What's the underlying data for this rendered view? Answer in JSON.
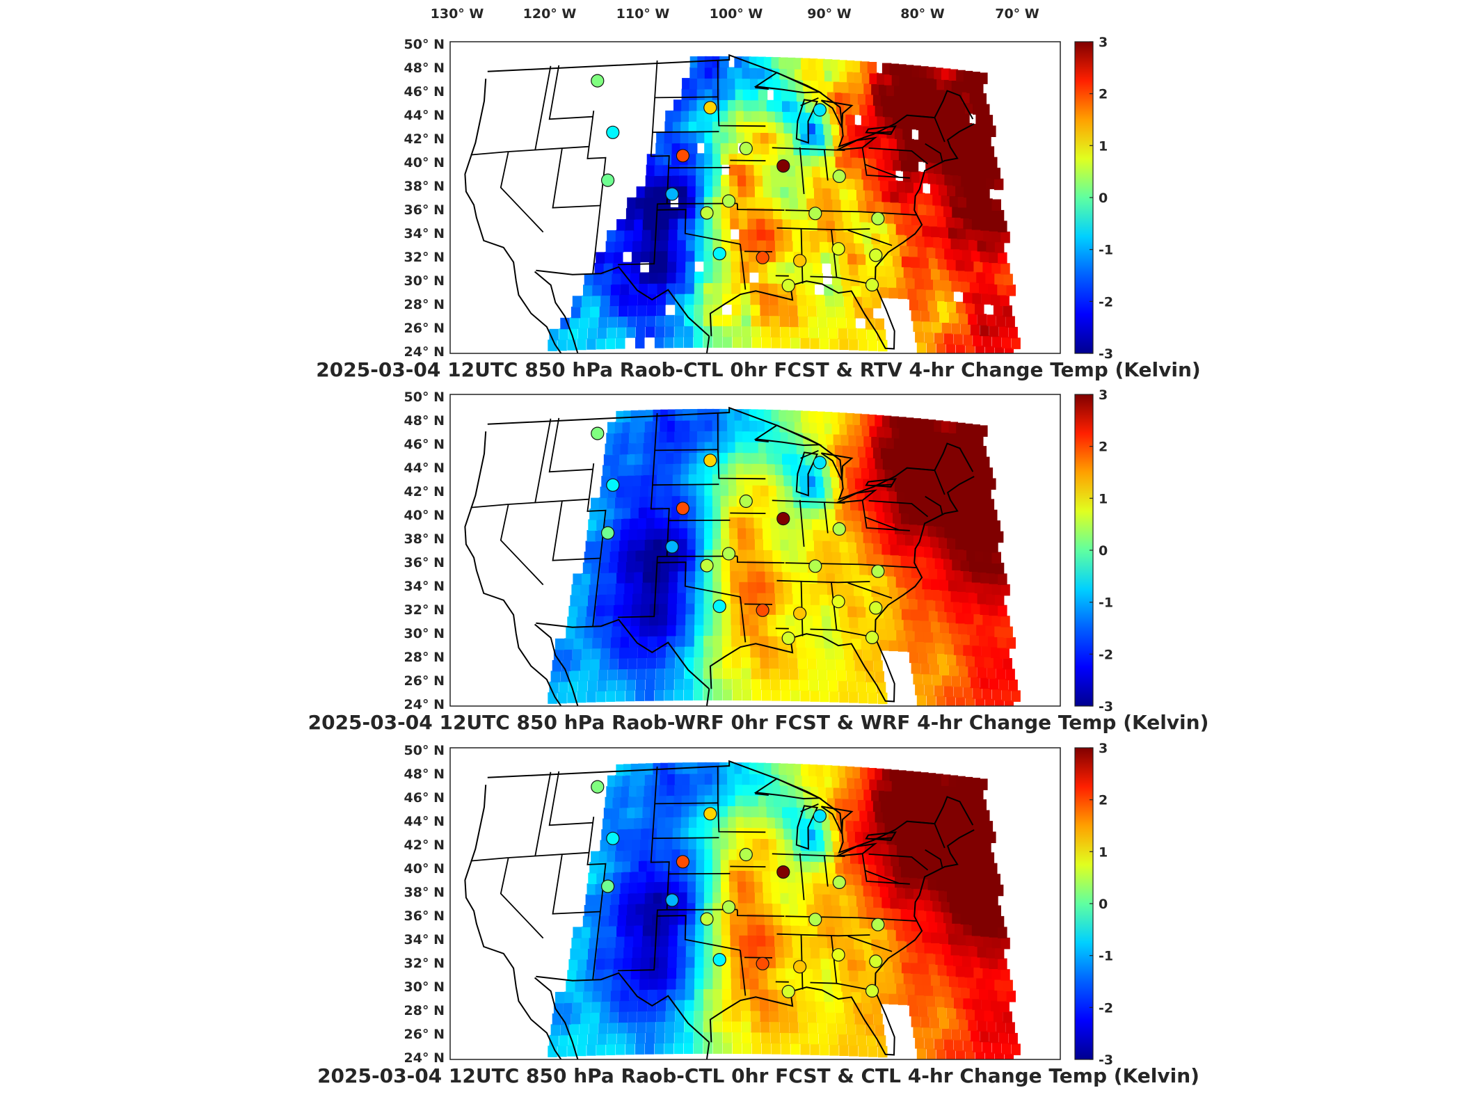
{
  "top_axis_labels": [
    "130° W",
    "120° W",
    "110° W",
    "100° W",
    "90° W",
    "80° W",
    "70° W"
  ],
  "lat_labels": [
    "50° N",
    "48° N",
    "46° N",
    "44° N",
    "42° N",
    "40° N",
    "38° N",
    "36° N",
    "34° N",
    "32° N",
    "30° N",
    "28° N",
    "26° N",
    "24° N"
  ],
  "colorbar": {
    "tick_labels": [
      "3",
      "2",
      "1",
      "0",
      "-1",
      "-2",
      "-3"
    ],
    "range": [
      -3,
      3
    ],
    "colormap": [
      "#00008f",
      "#0000ff",
      "#0080ff",
      "#00ffff",
      "#80ff80",
      "#ffff00",
      "#ff8000",
      "#ff0000",
      "#800000"
    ]
  },
  "panels": [
    {
      "title": "2025-03-04 12UTC 850 hPa Raob-CTL 0hr FCST & RTV 4-hr Change Temp (Kelvin)",
      "variant": "rtv"
    },
    {
      "title": "2025-03-04 12UTC 850 hPa Raob-WRF 0hr FCST & WRF 4-hr Change Temp (Kelvin)",
      "variant": "wrf"
    },
    {
      "title": "2025-03-04 12UTC 850 hPa Raob-CTL 0hr FCST & CTL 4-hr Change Temp (Kelvin)",
      "variant": "ctl"
    }
  ],
  "map_data": {
    "projection": "Lambert conformal, CONUS",
    "field": "850 hPa 4-hr temperature change (K)",
    "raob_markers": [
      {
        "lon": -111.0,
        "lat": 47.5,
        "value": 0.0
      },
      {
        "lon": -108.5,
        "lat": 43.1,
        "value": -0.8
      },
      {
        "lon": -108.5,
        "lat": 39.1,
        "value": -0.1
      },
      {
        "lon": -97.5,
        "lat": 45.0,
        "value": 1.0
      },
      {
        "lon": -100.5,
        "lat": 41.0,
        "value": 1.8
      },
      {
        "lon": -93.5,
        "lat": 41.6,
        "value": 0.3
      },
      {
        "lon": -89.5,
        "lat": 40.2,
        "value": 3.0
      },
      {
        "lon": -84.8,
        "lat": 45.0,
        "value": -0.9
      },
      {
        "lon": -83.5,
        "lat": 39.5,
        "value": 0.3
      },
      {
        "lon": -101.5,
        "lat": 37.8,
        "value": -1.2
      },
      {
        "lon": -95.5,
        "lat": 37.2,
        "value": 0.3
      },
      {
        "lon": -97.8,
        "lat": 36.2,
        "value": 0.4
      },
      {
        "lon": -86.5,
        "lat": 36.3,
        "value": 0.3
      },
      {
        "lon": -80.0,
        "lat": 36.1,
        "value": 0.3
      },
      {
        "lon": -96.5,
        "lat": 32.8,
        "value": -0.8
      },
      {
        "lon": -92.2,
        "lat": 32.5,
        "value": 1.8
      },
      {
        "lon": -88.5,
        "lat": 32.3,
        "value": 1.1
      },
      {
        "lon": -84.5,
        "lat": 33.4,
        "value": 0.6
      },
      {
        "lon": -80.8,
        "lat": 33.0,
        "value": 0.5
      },
      {
        "lon": -89.8,
        "lat": 30.2,
        "value": 0.5
      },
      {
        "lon": -81.6,
        "lat": 30.5,
        "value": 0.5
      }
    ]
  }
}
